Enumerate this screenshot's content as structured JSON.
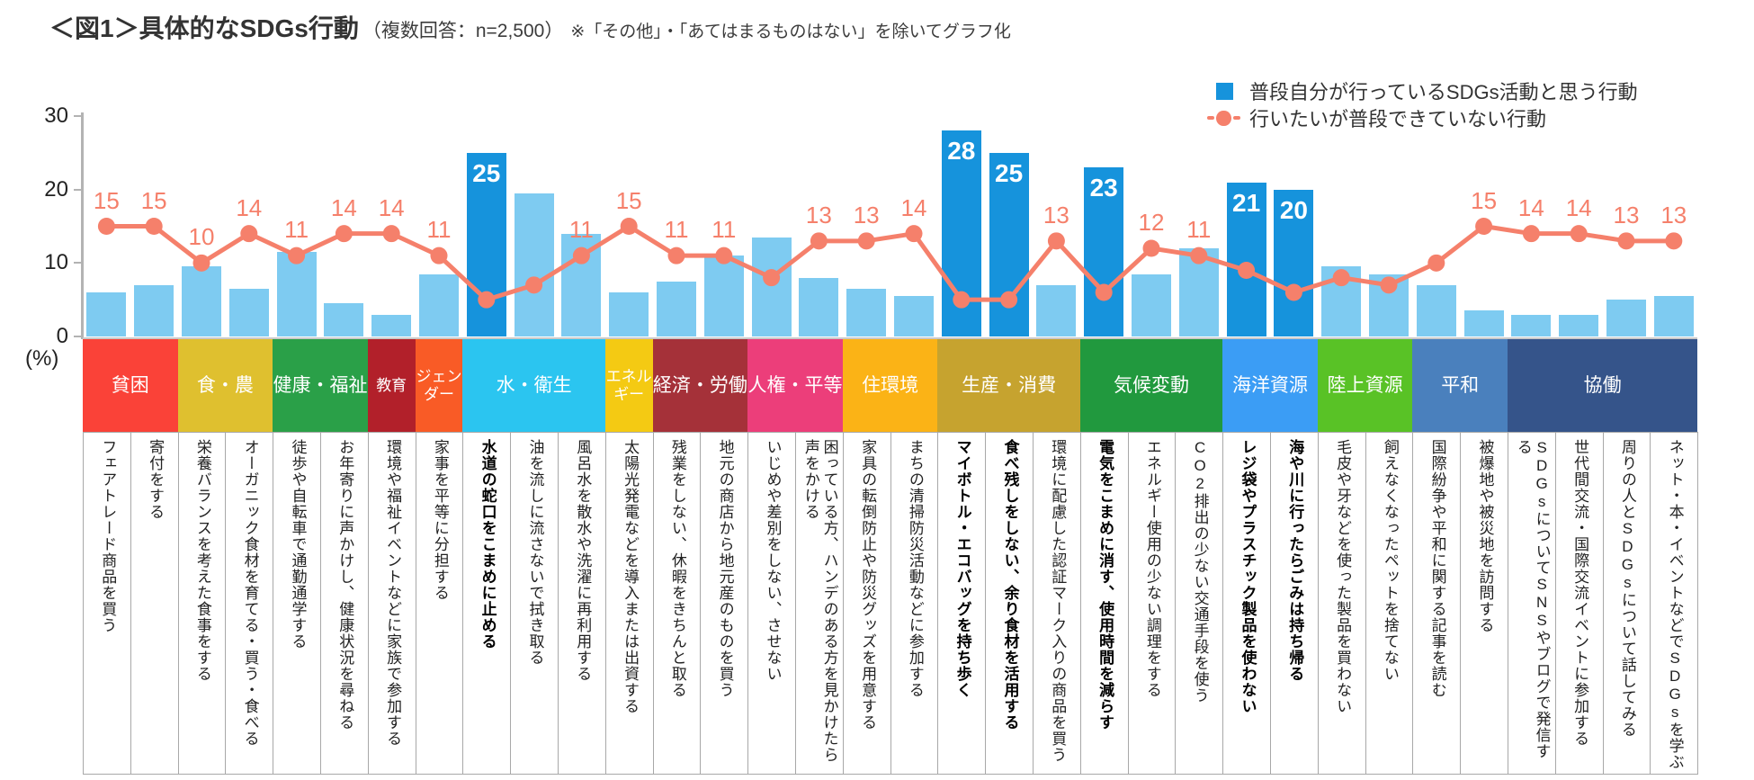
{
  "title": {
    "main": "＜図1＞具体的なSDGs行動",
    "sub": "（複数回答：n=2,500）",
    "note": "※「その他」・「あてはまるものはない」を除いてグラフ化"
  },
  "legend": {
    "bar_label": "普段自分が行っているSDGs活動と思う行動",
    "line_label": "行いたいが普段できていない行動"
  },
  "axis": {
    "unit_label": "(%)",
    "yticks": [
      0,
      10,
      20,
      30
    ],
    "ymax": 30
  },
  "colors": {
    "bar_normal": "#7ecbf1",
    "bar_highlight": "#1693dc",
    "line": "#f5806b",
    "axis": "#b3b3b3",
    "bar_value_text": "#ffffff"
  },
  "chart_data": {
    "type": "bar",
    "subtype": "bar+line combo",
    "title": "具体的なSDGs行動",
    "ylabel": "(%)",
    "ylim": [
      0,
      30
    ],
    "grid": false,
    "legend_position": "top-right",
    "series": [
      {
        "name": "普段自分が行っているSDGs活動と思う行動",
        "type": "bar"
      },
      {
        "name": "行いたいが普段できていない行動",
        "type": "line"
      }
    ],
    "groups": [
      {
        "name": "貧困",
        "color": "#fa4238",
        "count": 2
      },
      {
        "name": "食・農",
        "color": "#dfc02f",
        "count": 2
      },
      {
        "name": "健康・福祉",
        "color": "#2aa048",
        "count": 2
      },
      {
        "name": "教育",
        "color": "#b2202a",
        "count": 1
      },
      {
        "name": "ジェンダー",
        "color": "#f95b26",
        "count": 1
      },
      {
        "name": "水・衛生",
        "color": "#2bc5f0",
        "count": 3
      },
      {
        "name": "エネルギー",
        "color": "#f4ca13",
        "count": 1
      },
      {
        "name": "経済・労働",
        "color": "#a53139",
        "count": 2
      },
      {
        "name": "人権・平等",
        "color": "#ec3e7a",
        "count": 2
      },
      {
        "name": "住環境",
        "color": "#fbb316",
        "count": 2
      },
      {
        "name": "生産・消費",
        "color": "#c6a32f",
        "count": 3
      },
      {
        "name": "気候変動",
        "color": "#21993e",
        "count": 3
      },
      {
        "name": "海洋資源",
        "color": "#3b9df5",
        "count": 2
      },
      {
        "name": "陸上資源",
        "color": "#59c226",
        "count": 2
      },
      {
        "name": "平和",
        "color": "#4a80bd",
        "count": 2
      },
      {
        "name": "協働",
        "color": "#35548a",
        "count": 4
      }
    ],
    "items": [
      {
        "label": "フェアトレード商品を買う",
        "group": "貧困",
        "bar": 6,
        "line": 15,
        "line_label": "15",
        "highlighted": false
      },
      {
        "label": "寄付をする",
        "group": "貧困",
        "bar": 7,
        "line": 15,
        "line_label": "15",
        "highlighted": false
      },
      {
        "label": "栄養バランスを考えた食事をする",
        "group": "食・農",
        "bar": 9.5,
        "line": 10,
        "line_label": "10",
        "highlighted": false
      },
      {
        "label": "オーガニック食材を育てる・買う・食べる",
        "group": "食・農",
        "bar": 6.5,
        "line": 14,
        "line_label": "14",
        "highlighted": false
      },
      {
        "label": "徒歩や自転車で通勤通学する",
        "group": "健康・福祉",
        "bar": 11.5,
        "line": 11,
        "line_label": "11",
        "highlighted": false
      },
      {
        "label": "お年寄りに声かけし、健康状況を尋ねる",
        "group": "健康・福祉",
        "bar": 4.5,
        "line": 14,
        "line_label": "14",
        "highlighted": false
      },
      {
        "label": "環境や福祉イベントなどに家族で参加する",
        "group": "教育",
        "bar": 3,
        "line": 14,
        "line_label": "14",
        "highlighted": false
      },
      {
        "label": "家事を平等に分担する",
        "group": "ジェンダー",
        "bar": 8.5,
        "line": 11,
        "line_label": "11",
        "highlighted": false
      },
      {
        "label": "水道の蛇口をこまめに止める",
        "group": "水・衛生",
        "bar": 25,
        "line": 5,
        "line_label": null,
        "highlighted": true
      },
      {
        "label": "油を流しに流さないで拭き取る",
        "group": "水・衛生",
        "bar": 19.5,
        "line": 7,
        "line_label": null,
        "highlighted": false
      },
      {
        "label": "風呂水を散水や洗濯に再利用する",
        "group": "水・衛生",
        "bar": 14,
        "line": 11,
        "line_label": "11",
        "highlighted": false
      },
      {
        "label": "太陽光発電などを導入または出資する",
        "group": "エネルギー",
        "bar": 6,
        "line": 15,
        "line_label": "15",
        "highlighted": false
      },
      {
        "label": "残業をしない、休暇をきちんと取る",
        "group": "経済・労働",
        "bar": 7.5,
        "line": 11,
        "line_label": "11",
        "highlighted": false
      },
      {
        "label": "地元の商店から地元産のものを買う",
        "group": "経済・労働",
        "bar": 11,
        "line": 11,
        "line_label": "11",
        "highlighted": false
      },
      {
        "label": "いじめや差別をしない、させない",
        "group": "人権・平等",
        "bar": 13.5,
        "line": 8,
        "line_label": null,
        "highlighted": false
      },
      {
        "label": "困っている方、ハンデのある方を見かけたら声をかける",
        "group": "人権・平等",
        "bar": 8,
        "line": 13,
        "line_label": "13",
        "highlighted": false
      },
      {
        "label": "家具の転倒防止や防災グッズを用意する",
        "group": "住環境",
        "bar": 6.5,
        "line": 13,
        "line_label": "13",
        "highlighted": false
      },
      {
        "label": "まちの清掃防災活動などに参加する",
        "group": "住環境",
        "bar": 5.5,
        "line": 14,
        "line_label": "14",
        "highlighted": false
      },
      {
        "label": "マイボトル・エコバッグを持ち歩く",
        "group": "生産・消費",
        "bar": 28,
        "line": 5,
        "line_label": null,
        "highlighted": true
      },
      {
        "label": "食べ残しをしない、余り食材を活用する",
        "group": "生産・消費",
        "bar": 25,
        "line": 5,
        "line_label": null,
        "highlighted": true
      },
      {
        "label": "環境に配慮した認証マーク入りの商品を買う",
        "group": "生産・消費",
        "bar": 7,
        "line": 13,
        "line_label": "13",
        "highlighted": false
      },
      {
        "label": "電気をこまめに消す、使用時間を減らす",
        "group": "気候変動",
        "bar": 23,
        "line": 6,
        "line_label": null,
        "highlighted": true
      },
      {
        "label": "エネルギー使用の少ない調理をする",
        "group": "気候変動",
        "bar": 8.5,
        "line": 12,
        "line_label": "12",
        "highlighted": false
      },
      {
        "label": "CO2排出の少ない交通手段を使う",
        "group": "気候変動",
        "bar": 12,
        "line": 11,
        "line_label": "11",
        "highlighted": false
      },
      {
        "label": "レジ袋やプラスチック製品を使わない",
        "group": "海洋資源",
        "bar": 21,
        "line": 9,
        "line_label": null,
        "highlighted": true
      },
      {
        "label": "海や川に行ったらごみは持ち帰る",
        "group": "海洋資源",
        "bar": 20,
        "line": 6,
        "line_label": null,
        "highlighted": true
      },
      {
        "label": "毛皮や牙などを使った製品を買わない",
        "group": "陸上資源",
        "bar": 9.5,
        "line": 8,
        "line_label": null,
        "highlighted": false
      },
      {
        "label": "飼えなくなったペットを捨てない",
        "group": "陸上資源",
        "bar": 8.5,
        "line": 7,
        "line_label": null,
        "highlighted": false
      },
      {
        "label": "国際紛争や平和に関する記事を読む",
        "group": "平和",
        "bar": 7,
        "line": 10,
        "line_label": null,
        "highlighted": false
      },
      {
        "label": "被爆地や被災地を訪問する",
        "group": "平和",
        "bar": 3.5,
        "line": 15,
        "line_label": "15",
        "highlighted": false
      },
      {
        "label": "SDGsについてSNSやブログで発信する",
        "group": "協働",
        "bar": 3,
        "line": 14,
        "line_label": "14",
        "highlighted": false
      },
      {
        "label": "世代間交流・国際交流イベントに参加する",
        "group": "協働",
        "bar": 3,
        "line": 14,
        "line_label": "14",
        "highlighted": false
      },
      {
        "label": "周りの人とSDGsについて話してみる",
        "group": "協働",
        "bar": 5,
        "line": 13,
        "line_label": "13",
        "highlighted": false
      },
      {
        "label": "ネット・本・イベントなどでSDGsを学ぶ",
        "group": "協働",
        "bar": 5.5,
        "line": 13,
        "line_label": "13",
        "highlighted": false
      }
    ]
  }
}
